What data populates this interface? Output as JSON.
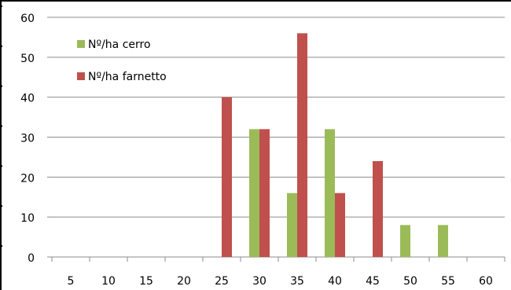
{
  "chart_data": {
    "type": "bar",
    "categories": [
      "5",
      "10",
      "15",
      "20",
      "25",
      "30",
      "35",
      "40",
      "45",
      "50",
      "55",
      "60"
    ],
    "series": [
      {
        "name": "Nº/ha cerro",
        "color": "#9bbb59",
        "values": [
          0,
          0,
          0,
          0,
          0,
          32,
          16,
          32,
          0,
          8,
          8,
          0
        ]
      },
      {
        "name": "Nº/ha farnetto",
        "color": "#c0504d",
        "values": [
          0,
          0,
          0,
          0,
          40,
          32,
          56,
          16,
          24,
          0,
          0,
          0
        ]
      }
    ],
    "y_ticks": [
      "0",
      "10",
      "20",
      "30",
      "40",
      "50",
      "60"
    ],
    "ylim": [
      0,
      60
    ],
    "grid": true,
    "legend": "top-left"
  }
}
